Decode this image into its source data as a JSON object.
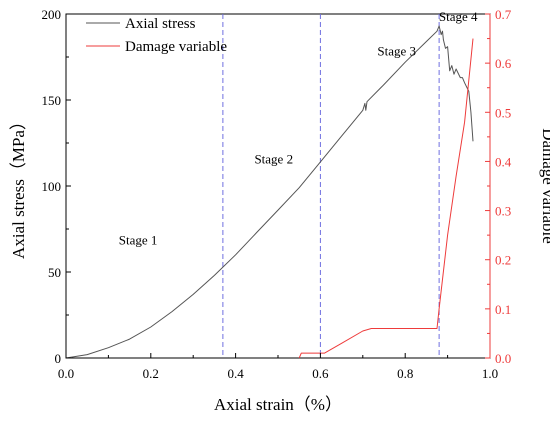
{
  "chart_data": {
    "type": "line",
    "title": "",
    "xlabel": "Axial strain（%）",
    "ylabel_left": "Axial stress（MPa）",
    "ylabel_right": "Damage variable",
    "xlim": [
      0.0,
      1.0
    ],
    "ylim_left": [
      0,
      200
    ],
    "ylim_right": [
      0.0,
      0.7
    ],
    "x_ticks": [
      "0.0",
      "0.2",
      "0.4",
      "0.6",
      "0.8",
      "1.0"
    ],
    "y_left_ticks": [
      "0",
      "50",
      "100",
      "150",
      "200"
    ],
    "y_right_ticks": [
      "0.0",
      "0.1",
      "0.2",
      "0.3",
      "0.4",
      "0.5",
      "0.6",
      "0.7"
    ],
    "grid": false,
    "legend_position": "top-left",
    "stage_boundaries": [
      0.37,
      0.6,
      0.88
    ],
    "stage_labels": [
      {
        "text": "Stage 1",
        "x": 0.17,
        "y": 66
      },
      {
        "text": "Stage 2",
        "x": 0.49,
        "y": 113
      },
      {
        "text": "Stage 3",
        "x": 0.78,
        "y": 176
      },
      {
        "text": "Stage 4",
        "x": 0.925,
        "y": 196
      }
    ],
    "series": [
      {
        "name": "Axial stress",
        "axis": "left",
        "color": "#555555",
        "x": [
          0.0,
          0.05,
          0.1,
          0.15,
          0.2,
          0.25,
          0.3,
          0.35,
          0.4,
          0.45,
          0.5,
          0.55,
          0.6,
          0.65,
          0.7,
          0.705,
          0.707,
          0.71,
          0.75,
          0.8,
          0.85,
          0.875,
          0.88,
          0.885,
          0.888,
          0.89,
          0.895,
          0.9,
          0.905,
          0.91,
          0.915,
          0.92,
          0.93,
          0.935,
          0.94,
          0.95,
          0.955,
          0.96
        ],
        "y": [
          0,
          2,
          6,
          11,
          18,
          27,
          37,
          48,
          60,
          73,
          86,
          99,
          114,
          129,
          144,
          148,
          144,
          149,
          159,
          172,
          184,
          190,
          193,
          188,
          190,
          185,
          180,
          181,
          167,
          170,
          165,
          168,
          163,
          163,
          160,
          155,
          143,
          126
        ]
      },
      {
        "name": "Damage variable",
        "axis": "right",
        "color": "#ee3b3b",
        "x": [
          0.55,
          0.555,
          0.6,
          0.61,
          0.65,
          0.7,
          0.72,
          0.8,
          0.875,
          0.88,
          0.9,
          0.92,
          0.94,
          0.96
        ],
        "y": [
          0.0,
          0.01,
          0.01,
          0.01,
          0.03,
          0.055,
          0.06,
          0.06,
          0.06,
          0.1,
          0.25,
          0.37,
          0.48,
          0.65
        ]
      }
    ],
    "colors": {
      "stress_line": "#555555",
      "damage_line": "#ee3b3b",
      "damage_axis": "#ee3b3b",
      "stage_divider": "#6f6fe0",
      "axes": "#000000"
    }
  }
}
